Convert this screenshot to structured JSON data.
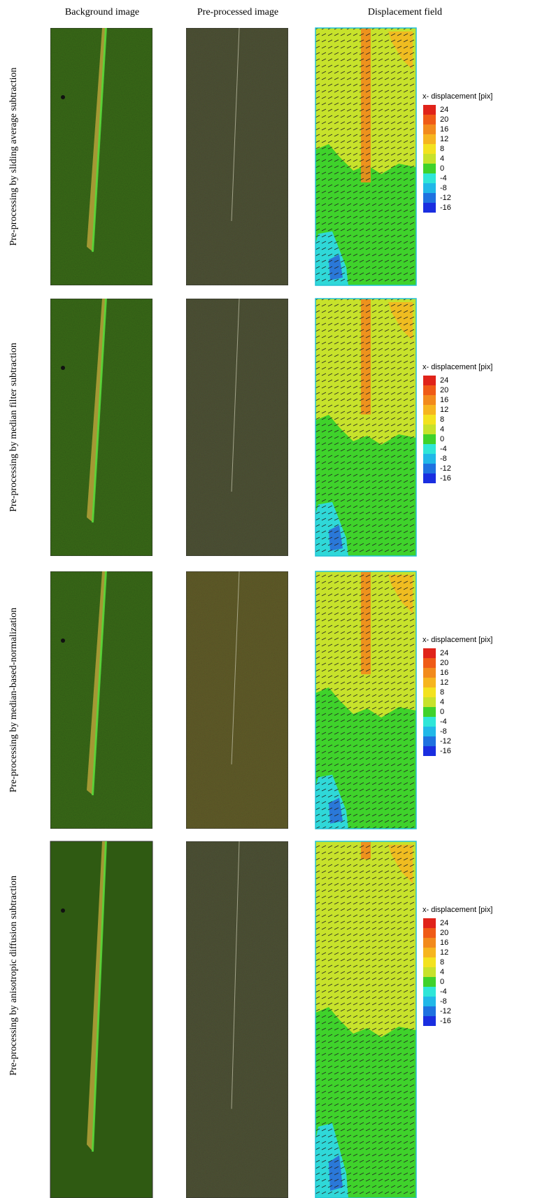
{
  "columns": [
    "Background image",
    "Pre-processed image",
    "Displacement field"
  ],
  "rows": [
    {
      "label": "Pre-processing by sliding average subtraction",
      "legend": {
        "title": "x- displacement [pix]",
        "ticks": [
          24,
          20,
          16,
          12,
          8,
          4,
          0,
          -4,
          -8,
          -12,
          -16
        ]
      }
    },
    {
      "label": "Pre-processing by median filter subtraction",
      "legend": {
        "title": "x- displacement [pix]",
        "ticks": [
          24,
          20,
          16,
          12,
          8,
          4,
          0,
          -4,
          -8,
          -12,
          -16
        ]
      }
    },
    {
      "label": "Pre-processing by median-based-normalization",
      "legend": {
        "title": "x- displacement [pix]",
        "ticks": [
          24,
          20,
          16,
          12,
          8,
          4,
          0,
          -4,
          -8,
          -12,
          -16
        ]
      }
    },
    {
      "label": "Pre-processing by anisotropic diffusion subtraction",
      "legend": {
        "title": "x- displacement [pix]",
        "ticks": [
          24,
          20,
          16,
          12,
          8,
          4,
          0,
          -4,
          -8,
          -12,
          -16
        ]
      }
    }
  ]
}
